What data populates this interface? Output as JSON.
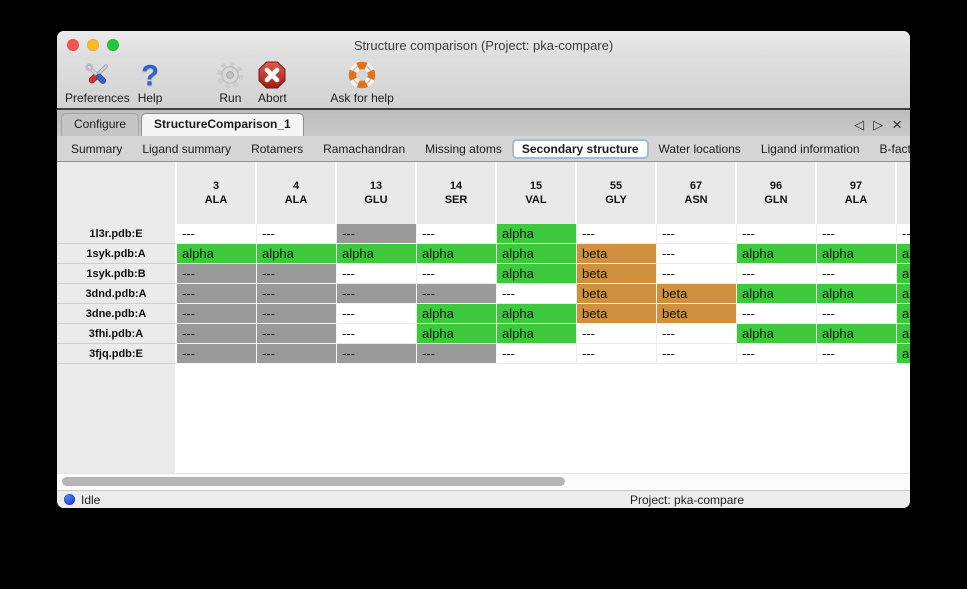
{
  "window": {
    "title": "Structure comparison (Project: pka-compare)"
  },
  "toolbar": {
    "items": [
      {
        "label": "Preferences",
        "icon": "tools-icon"
      },
      {
        "label": "Help",
        "icon": "question-mark-icon"
      },
      {
        "label": "Run",
        "icon": "gear-icon"
      },
      {
        "label": "Abort",
        "icon": "abort-icon"
      },
      {
        "label": "Ask for help",
        "icon": "lifebuoy-icon"
      }
    ]
  },
  "tabs": {
    "items": [
      {
        "label": "Configure",
        "selected": false
      },
      {
        "label": "StructureComparison_1",
        "selected": true
      }
    ],
    "nav": {
      "prev": "◁",
      "next": "▷",
      "close": "×"
    }
  },
  "subtabs": {
    "items": [
      "Summary",
      "Ligand summary",
      "Rotamers",
      "Ramachandran",
      "Missing atoms",
      "Secondary structure",
      "Water locations",
      "Ligand information",
      "B-factors"
    ],
    "selected": "Secondary structure",
    "nav": {
      "prev": "◁",
      "next": "▷"
    }
  },
  "table": {
    "colors": {
      "alpha": "#3ec83e",
      "beta": "#cf9140",
      "missing": "#9a9a9a"
    },
    "columns": [
      {
        "seq": "3",
        "res": "ALA"
      },
      {
        "seq": "4",
        "res": "ALA"
      },
      {
        "seq": "13",
        "res": "GLU"
      },
      {
        "seq": "14",
        "res": "SER"
      },
      {
        "seq": "15",
        "res": "VAL"
      },
      {
        "seq": "55",
        "res": "GLY"
      },
      {
        "seq": "67",
        "res": "ASN"
      },
      {
        "seq": "96",
        "res": "GLN"
      },
      {
        "seq": "97",
        "res": "ALA"
      }
    ],
    "rows": [
      {
        "label": "1l3r.pdb:E",
        "cells": [
          {
            "t": "---",
            "bg": "white"
          },
          {
            "t": "---",
            "bg": "white"
          },
          {
            "t": "---",
            "bg": "gray"
          },
          {
            "t": "---",
            "bg": "white"
          },
          {
            "t": "alpha",
            "bg": "green"
          },
          {
            "t": "---",
            "bg": "white"
          },
          {
            "t": "---",
            "bg": "white"
          },
          {
            "t": "---",
            "bg": "white"
          },
          {
            "t": "---",
            "bg": "white"
          }
        ],
        "overflow": {
          "t": "---",
          "bg": "white"
        }
      },
      {
        "label": "1syk.pdb:A",
        "cells": [
          {
            "t": "alpha",
            "bg": "green"
          },
          {
            "t": "alpha",
            "bg": "green"
          },
          {
            "t": "alpha",
            "bg": "green"
          },
          {
            "t": "alpha",
            "bg": "green"
          },
          {
            "t": "alpha",
            "bg": "green"
          },
          {
            "t": "beta",
            "bg": "orange"
          },
          {
            "t": "---",
            "bg": "white"
          },
          {
            "t": "alpha",
            "bg": "green"
          },
          {
            "t": "alpha",
            "bg": "green"
          }
        ],
        "overflow": {
          "t": "alpha",
          "bg": "green"
        }
      },
      {
        "label": "1syk.pdb:B",
        "cells": [
          {
            "t": "---",
            "bg": "gray"
          },
          {
            "t": "---",
            "bg": "gray"
          },
          {
            "t": "---",
            "bg": "white"
          },
          {
            "t": "---",
            "bg": "white"
          },
          {
            "t": "alpha",
            "bg": "green"
          },
          {
            "t": "beta",
            "bg": "orange"
          },
          {
            "t": "---",
            "bg": "white"
          },
          {
            "t": "---",
            "bg": "white"
          },
          {
            "t": "---",
            "bg": "white"
          }
        ],
        "overflow": {
          "t": "alpha",
          "bg": "green"
        }
      },
      {
        "label": "3dnd.pdb:A",
        "cells": [
          {
            "t": "---",
            "bg": "gray"
          },
          {
            "t": "---",
            "bg": "gray"
          },
          {
            "t": "---",
            "bg": "gray"
          },
          {
            "t": "---",
            "bg": "gray"
          },
          {
            "t": "---",
            "bg": "white"
          },
          {
            "t": "beta",
            "bg": "orange"
          },
          {
            "t": "beta",
            "bg": "orange"
          },
          {
            "t": "alpha",
            "bg": "green"
          },
          {
            "t": "alpha",
            "bg": "green"
          }
        ],
        "overflow": {
          "t": "alpha",
          "bg": "green"
        }
      },
      {
        "label": "3dne.pdb:A",
        "cells": [
          {
            "t": "---",
            "bg": "gray"
          },
          {
            "t": "---",
            "bg": "gray"
          },
          {
            "t": "---",
            "bg": "white"
          },
          {
            "t": "alpha",
            "bg": "green"
          },
          {
            "t": "alpha",
            "bg": "green"
          },
          {
            "t": "beta",
            "bg": "orange"
          },
          {
            "t": "beta",
            "bg": "orange"
          },
          {
            "t": "---",
            "bg": "white"
          },
          {
            "t": "---",
            "bg": "white"
          }
        ],
        "overflow": {
          "t": "alpha",
          "bg": "green"
        }
      },
      {
        "label": "3fhi.pdb:A",
        "cells": [
          {
            "t": "---",
            "bg": "gray"
          },
          {
            "t": "---",
            "bg": "gray"
          },
          {
            "t": "---",
            "bg": "white"
          },
          {
            "t": "alpha",
            "bg": "green"
          },
          {
            "t": "alpha",
            "bg": "green"
          },
          {
            "t": "---",
            "bg": "white"
          },
          {
            "t": "---",
            "bg": "white"
          },
          {
            "t": "alpha",
            "bg": "green"
          },
          {
            "t": "alpha",
            "bg": "green"
          }
        ],
        "overflow": {
          "t": "alpha",
          "bg": "green"
        }
      },
      {
        "label": "3fjq.pdb:E",
        "cells": [
          {
            "t": "---",
            "bg": "gray"
          },
          {
            "t": "---",
            "bg": "gray"
          },
          {
            "t": "---",
            "bg": "gray"
          },
          {
            "t": "---",
            "bg": "gray"
          },
          {
            "t": "---",
            "bg": "white"
          },
          {
            "t": "---",
            "bg": "white"
          },
          {
            "t": "---",
            "bg": "white"
          },
          {
            "t": "---",
            "bg": "white"
          },
          {
            "t": "---",
            "bg": "white"
          }
        ],
        "overflow": {
          "t": "alpha",
          "bg": "green"
        }
      }
    ]
  },
  "statusbar": {
    "status": "Idle",
    "project": "Project: pka-compare"
  }
}
